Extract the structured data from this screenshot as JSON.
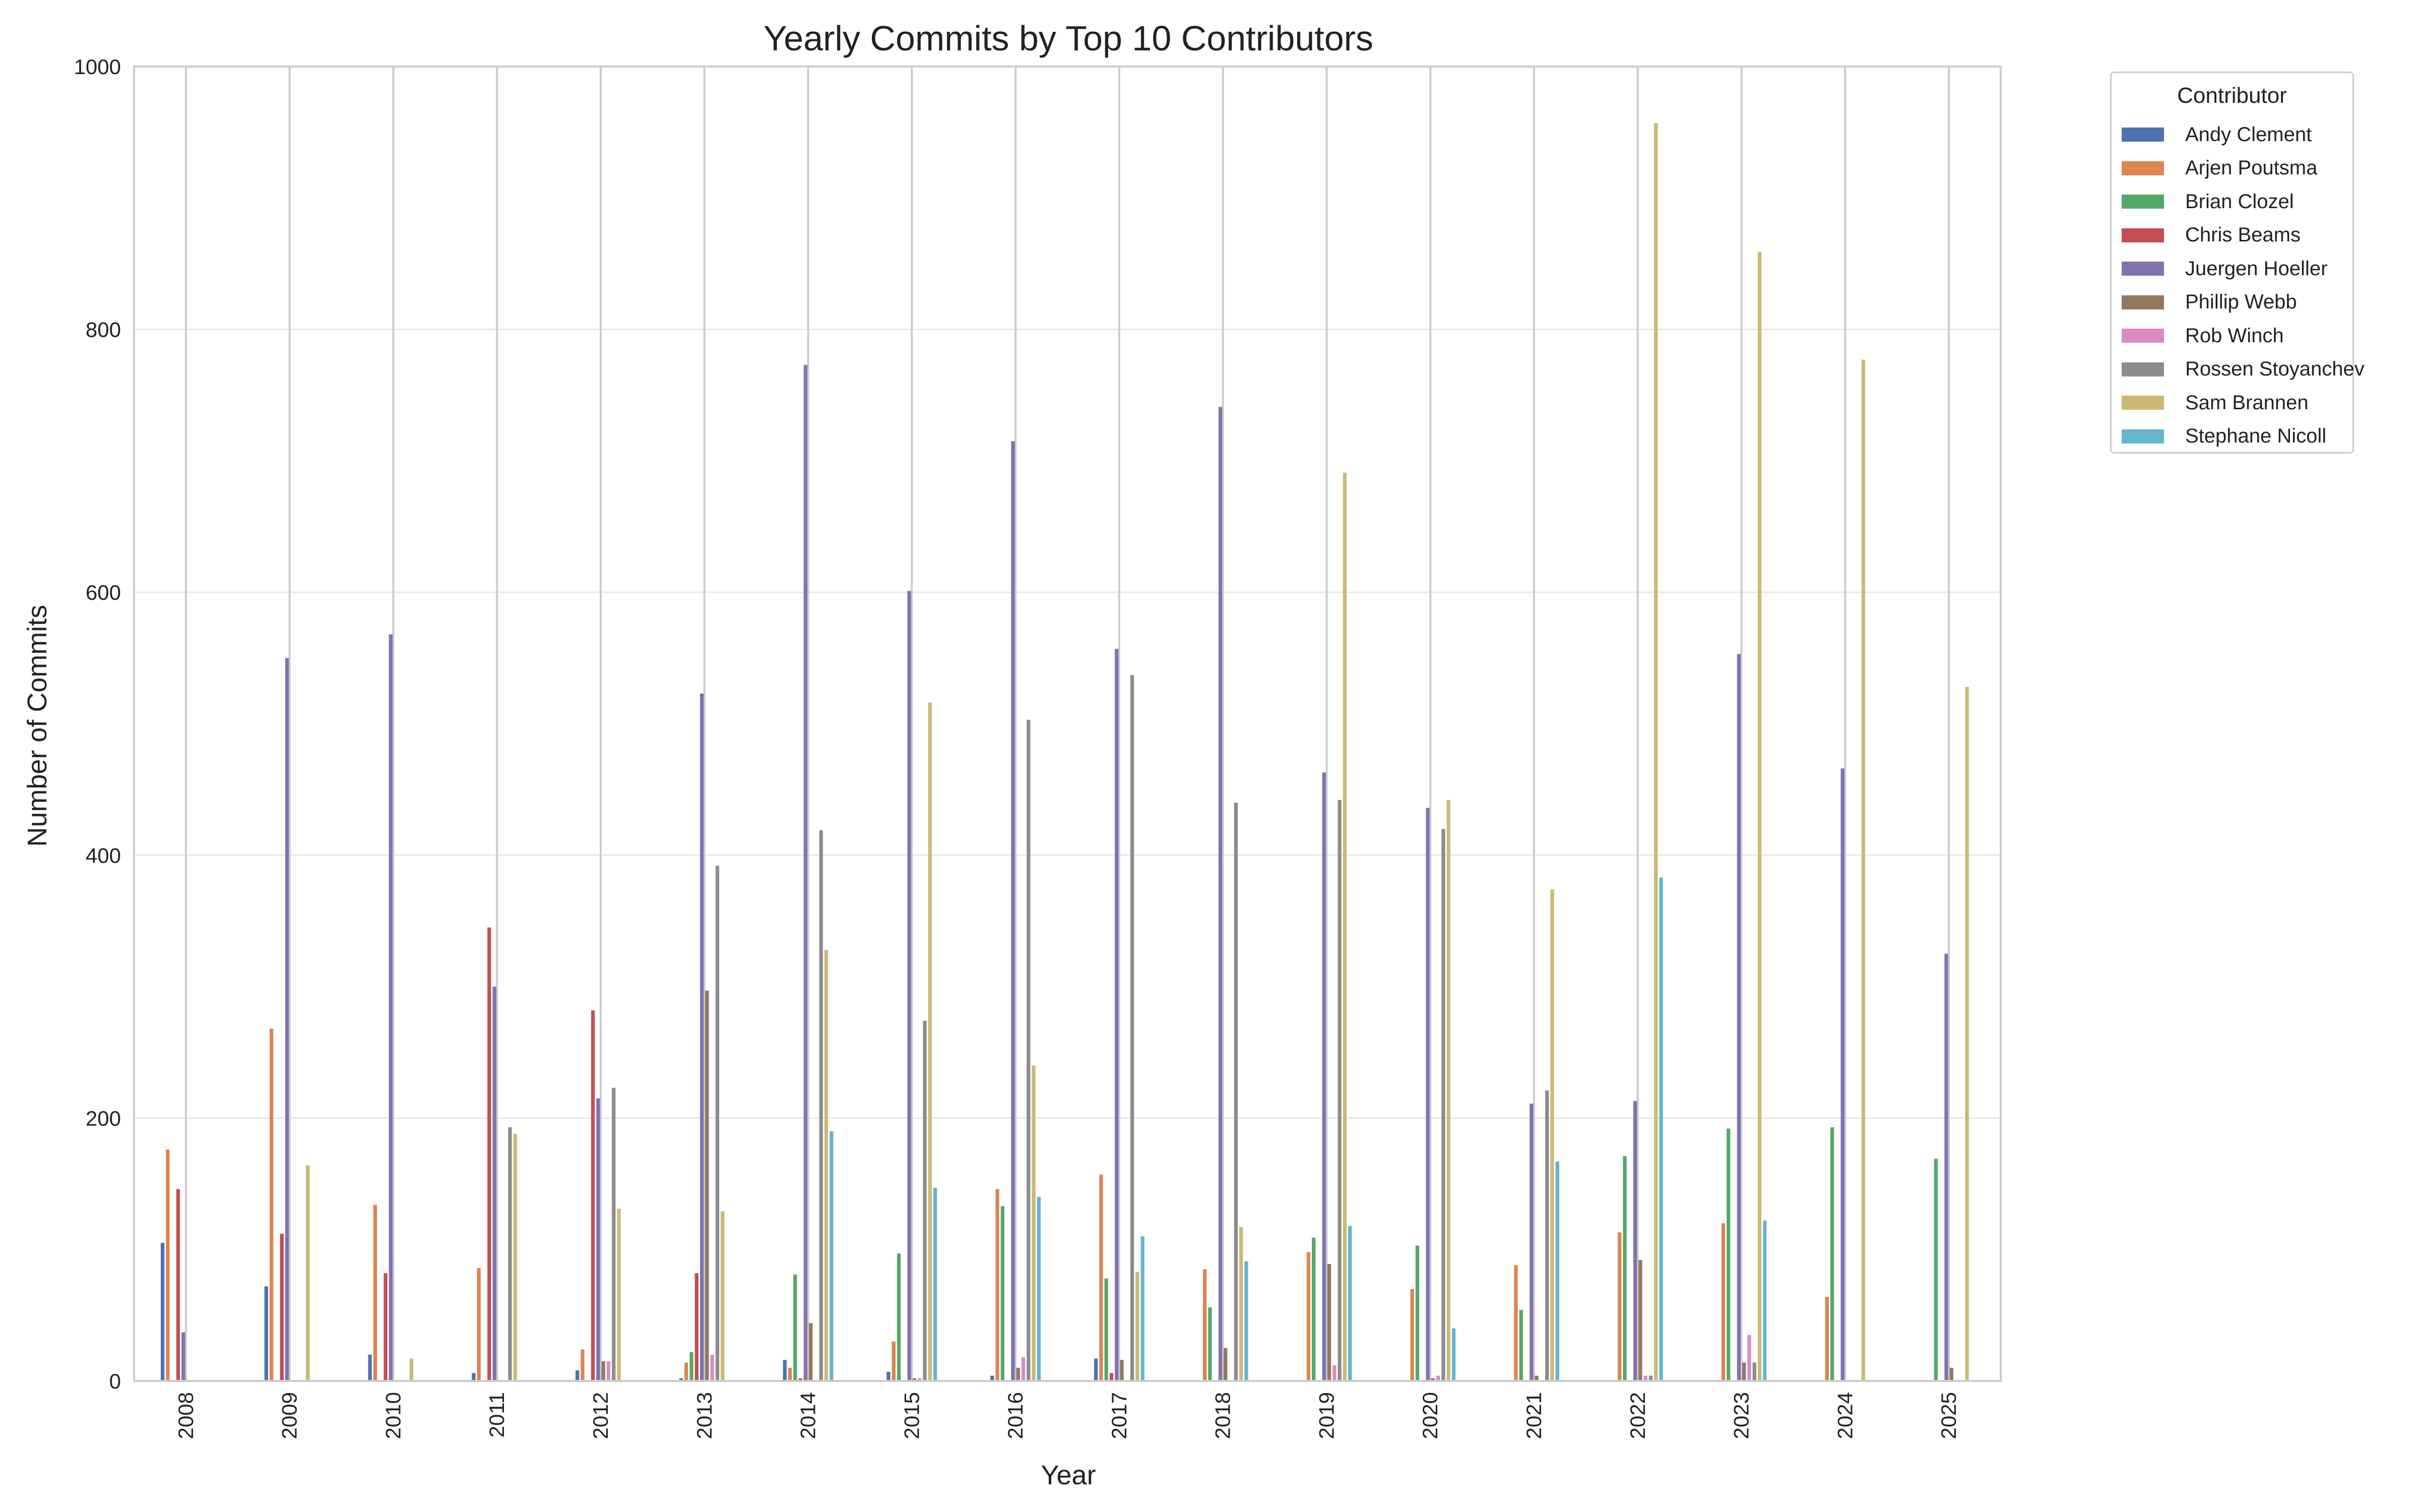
{
  "chart_data": {
    "type": "bar",
    "title": "Yearly Commits by Top 10 Contributors",
    "xlabel": "Year",
    "ylabel": "Number of Commits",
    "ylim": [
      0,
      1000
    ],
    "yticks": [
      0,
      200,
      400,
      600,
      800,
      1000
    ],
    "grid": "y",
    "legend_title": "Contributor",
    "legend_position": "outside-right",
    "categories": [
      "2008",
      "2009",
      "2010",
      "2011",
      "2012",
      "2013",
      "2014",
      "2015",
      "2016",
      "2017",
      "2018",
      "2019",
      "2020",
      "2021",
      "2022",
      "2023",
      "2024",
      "2025"
    ],
    "series": [
      {
        "name": "Andy Clement",
        "color": "#4c72b0",
        "values": [
          105,
          72,
          20,
          6,
          8,
          2,
          16,
          7,
          4,
          17,
          0,
          0,
          0,
          0,
          0,
          0,
          0,
          0
        ]
      },
      {
        "name": "Arjen Poutsma",
        "color": "#dd8452",
        "values": [
          176,
          268,
          134,
          86,
          24,
          14,
          10,
          30,
          146,
          157,
          85,
          98,
          70,
          88,
          113,
          120,
          64,
          0
        ]
      },
      {
        "name": "Brian Clozel",
        "color": "#55a868",
        "values": [
          0,
          0,
          0,
          0,
          0,
          22,
          81,
          97,
          133,
          78,
          56,
          109,
          103,
          54,
          171,
          192,
          193,
          169
        ]
      },
      {
        "name": "Chris Beams",
        "color": "#c44e52",
        "values": [
          146,
          112,
          82,
          345,
          282,
          82,
          2,
          0,
          0,
          6,
          0,
          0,
          0,
          0,
          0,
          0,
          0,
          0
        ]
      },
      {
        "name": "Juergen Hoeller",
        "color": "#8172b3",
        "values": [
          37,
          550,
          568,
          300,
          215,
          523,
          773,
          601,
          715,
          557,
          741,
          463,
          436,
          211,
          213,
          553,
          466,
          325
        ]
      },
      {
        "name": "Phillip Webb",
        "color": "#937860",
        "values": [
          0,
          0,
          0,
          0,
          15,
          297,
          44,
          2,
          10,
          16,
          25,
          89,
          2,
          4,
          92,
          14,
          0,
          10
        ]
      },
      {
        "name": "Rob Winch",
        "color": "#da8bc3",
        "values": [
          0,
          0,
          0,
          0,
          15,
          20,
          0,
          2,
          18,
          0,
          0,
          12,
          4,
          0,
          4,
          35,
          0,
          0
        ]
      },
      {
        "name": "Rossen Stoyanchev",
        "color": "#8c8c8c",
        "values": [
          0,
          0,
          0,
          193,
          223,
          392,
          419,
          274,
          503,
          537,
          440,
          442,
          420,
          221,
          4,
          14,
          0,
          0
        ]
      },
      {
        "name": "Sam Brannen",
        "color": "#ccb974",
        "values": [
          0,
          164,
          17,
          188,
          131,
          129,
          328,
          516,
          240,
          83,
          117,
          691,
          442,
          374,
          957,
          859,
          777,
          528
        ]
      },
      {
        "name": "Stephane Nicoll",
        "color": "#64b5cd",
        "values": [
          0,
          0,
          0,
          0,
          0,
          0,
          190,
          147,
          140,
          110,
          91,
          118,
          40,
          167,
          383,
          122,
          0,
          0
        ]
      }
    ]
  }
}
